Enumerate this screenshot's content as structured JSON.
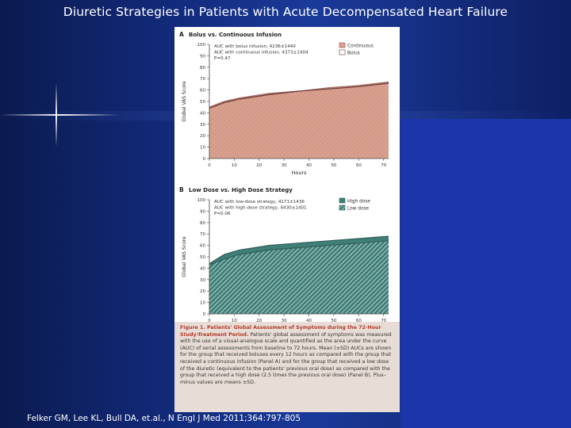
{
  "slide": {
    "title": "Diuretic Strategies in Patients with Acute Decompensated Heart Failure",
    "citation": "Felker GM, Lee KL, Bull DA, et.al., N Engl J Med 2011;364:797-805"
  },
  "colors": {
    "background": "#122a7a",
    "continuous_fill": "#d9a08f",
    "bolus_line": "#6a3a3a",
    "high_dose_fill": "#3f7f78",
    "low_dose_hatch": "#ffffff",
    "caption_bg": "#e8ddd6",
    "caption_title": "#b23a2a"
  },
  "chart_data": [
    {
      "type": "area",
      "panel_label": "A",
      "title": "Bolus vs. Continuous Infusion",
      "xlabel": "Hours",
      "ylabel": "Global VAS Score",
      "xlim": [
        0,
        72
      ],
      "ylim": [
        0,
        100
      ],
      "xticks": [
        "0",
        "10",
        "20",
        "30",
        "40",
        "50",
        "60",
        "70"
      ],
      "yticks": [
        "0",
        "10",
        "20",
        "30",
        "40",
        "50",
        "60",
        "70",
        "80",
        "90",
        "100"
      ],
      "annotations": [
        "AUC with bolus infusion, 4236±1440",
        "AUC with continuous infusion, 4373±1404",
        "P=0.47"
      ],
      "legend": [
        "Continuous",
        "Bolus"
      ],
      "legend_position": "top-right",
      "series": [
        {
          "name": "Continuous",
          "x": [
            0,
            6,
            12,
            24,
            36,
            48,
            60,
            72
          ],
          "values": [
            45,
            50,
            53,
            57,
            59,
            62,
            64,
            67
          ]
        },
        {
          "name": "Bolus",
          "x": [
            0,
            6,
            12,
            24,
            36,
            48,
            60,
            72
          ],
          "values": [
            44,
            49,
            52,
            56,
            59,
            61,
            63,
            66
          ]
        }
      ]
    },
    {
      "type": "area",
      "panel_label": "B",
      "title": "Low Dose vs. High Dose Strategy",
      "xlabel": "Hours",
      "ylabel": "Global VAS Score",
      "xlim": [
        0,
        72
      ],
      "ylim": [
        0,
        100
      ],
      "xticks": [
        "0",
        "10",
        "20",
        "30",
        "40",
        "50",
        "60",
        "70"
      ],
      "yticks": [
        "0",
        "10",
        "20",
        "30",
        "40",
        "50",
        "60",
        "70",
        "80",
        "90",
        "100"
      ],
      "annotations": [
        "AUC with low-dose strategy, 4171±1436",
        "AUC with high-dose strategy, 4430±1401",
        "P=0.06"
      ],
      "legend": [
        "High dose",
        "Low dose"
      ],
      "legend_position": "top-right",
      "series": [
        {
          "name": "High dose",
          "x": [
            0,
            6,
            12,
            24,
            36,
            48,
            60,
            72
          ],
          "values": [
            44,
            52,
            56,
            60,
            62,
            64,
            66,
            68
          ]
        },
        {
          "name": "Low dose",
          "x": [
            0,
            6,
            12,
            24,
            36,
            48,
            60,
            72
          ],
          "values": [
            43,
            48,
            52,
            56,
            58,
            60,
            62,
            64
          ]
        }
      ]
    }
  ],
  "caption": {
    "title": "Figure 1. Patients' Global Assessment of Symptoms during the 72-Hour Study-Treatment Period.",
    "body": "Patients' global assessment of symptoms was measured with the use of a visual-analogue scale and quantified as the area under the curve (AUC) of serial assessments from baseline to 72 hours. Mean (±SD) AUCs are shown for the group that received boluses every 12 hours as compared with the group that received a continuous infusion (Panel A) and for the group that received a low dose of the diuretic (equivalent to the patients' previous oral dose) as compared with the group that received a high dose (2.5 times the previous oral dose) (Panel B). Plus–minus values are means ±SD."
  }
}
